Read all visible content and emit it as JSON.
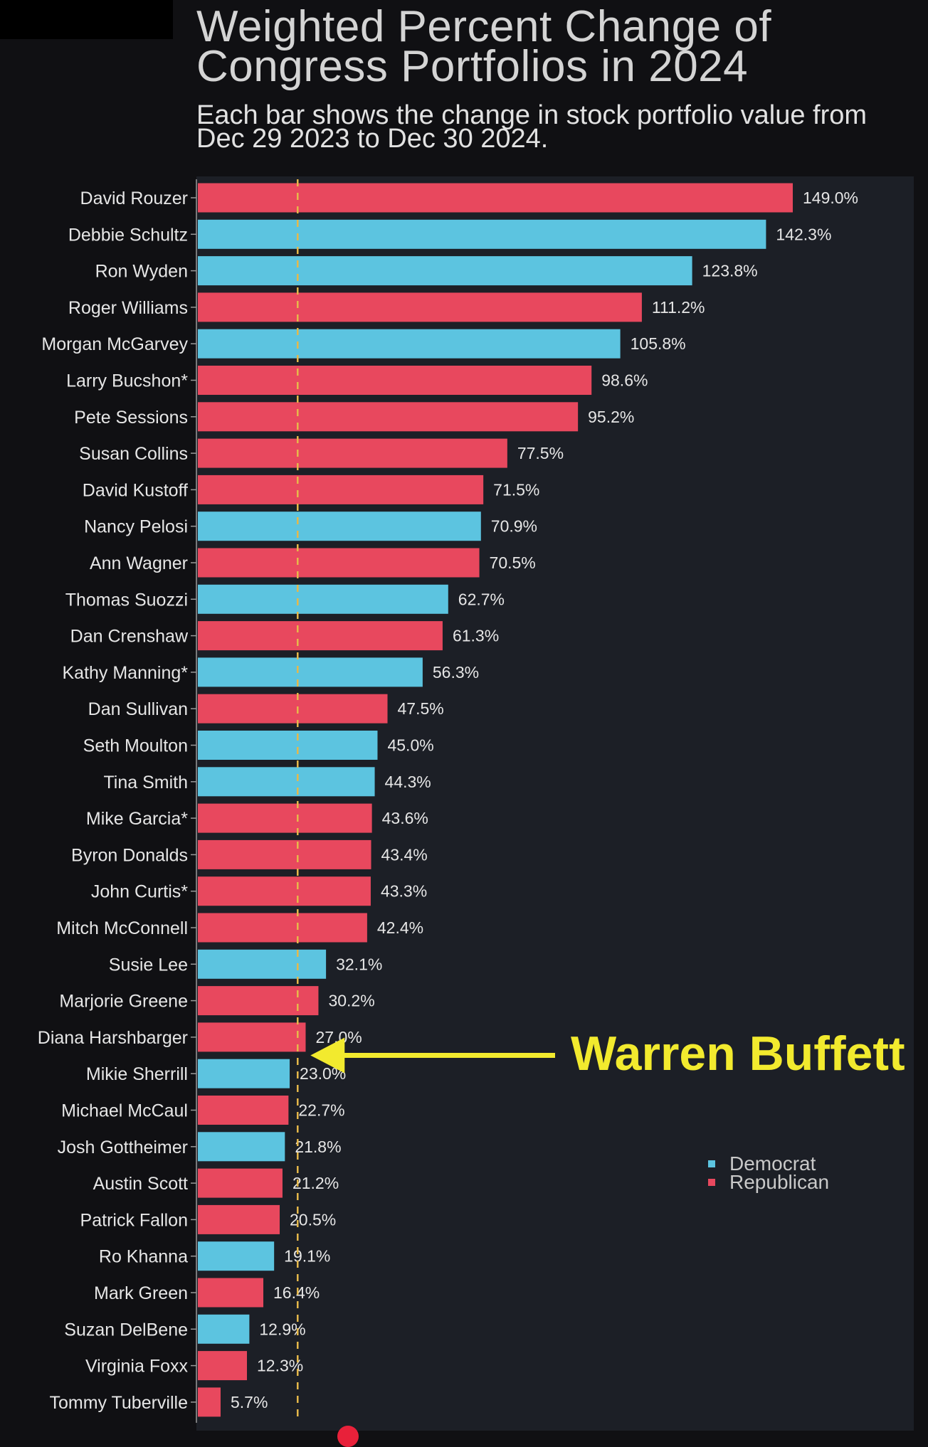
{
  "title": "Weighted Percent Change of Congress Portfolios in 2024",
  "subtitle": "Each bar shows the change in stock portfolio value from Dec 29 2023 to Dec 30 2024.",
  "annotation": "Warren Buffett",
  "colors": {
    "democrat": "#5cc4e0",
    "republican": "#e8485e",
    "reference_line": "#e6b84a",
    "annotation": "#f2ea2e",
    "background": "#101013",
    "plot_background": "#1c1f26"
  },
  "legend": [
    {
      "label": "Democrat",
      "color": "#5cc4e0"
    },
    {
      "label": "Republican",
      "color": "#e8485e"
    }
  ],
  "chart_data": {
    "type": "bar",
    "orientation": "horizontal",
    "title": "Weighted Percent Change of Congress Portfolios in 2024",
    "subtitle": "Each bar shows the change in stock portfolio value from Dec 29 2023 to Dec 30 2024.",
    "xlim": [
      0,
      160
    ],
    "reference_line": {
      "value": 25.0,
      "style": "dashed",
      "label": "Warren Buffett"
    },
    "legend_position": "right",
    "categories": [
      "David Rouzer",
      "Debbie Schultz",
      "Ron Wyden",
      "Roger Williams",
      "Morgan McGarvey",
      "Larry Bucshon*",
      "Pete Sessions",
      "Susan Collins",
      "David Kustoff",
      "Nancy Pelosi",
      "Ann Wagner",
      "Thomas Suozzi",
      "Dan Crenshaw",
      "Kathy Manning*",
      "Dan Sullivan",
      "Seth Moulton",
      "Tina Smith",
      "Mike Garcia*",
      "Byron Donalds",
      "John Curtis*",
      "Mitch McConnell",
      "Susie Lee",
      "Marjorie Greene",
      "Diana Harshbarger",
      "Mikie Sherrill",
      "Michael McCaul",
      "Josh Gottheimer",
      "Austin Scott",
      "Patrick Fallon",
      "Ro Khanna",
      "Mark Green",
      "Suzan DelBene",
      "Virginia Foxx",
      "Tommy Tuberville"
    ],
    "values": [
      149.0,
      142.3,
      123.8,
      111.2,
      105.8,
      98.6,
      95.2,
      77.5,
      71.5,
      70.9,
      70.5,
      62.7,
      61.3,
      56.3,
      47.5,
      45.0,
      44.3,
      43.6,
      43.4,
      43.3,
      42.4,
      32.1,
      30.2,
      27.0,
      23.0,
      22.7,
      21.8,
      21.2,
      20.5,
      19.1,
      16.4,
      12.9,
      12.3,
      5.7
    ],
    "labels": [
      "149.0%",
      "142.3%",
      "123.8%",
      "111.2%",
      "105.8%",
      "98.6%",
      "95.2%",
      "77.5%",
      "71.5%",
      "70.9%",
      "70.5%",
      "62.7%",
      "61.3%",
      "56.3%",
      "47.5%",
      "45.0%",
      "44.3%",
      "43.6%",
      "43.4%",
      "43.3%",
      "42.4%",
      "32.1%",
      "30.2%",
      "27.0%",
      "23.0%",
      "22.7%",
      "21.8%",
      "21.2%",
      "20.5%",
      "19.1%",
      "16.4%",
      "12.9%",
      "12.3%",
      "5.7%"
    ],
    "party": [
      "Republican",
      "Democrat",
      "Democrat",
      "Republican",
      "Democrat",
      "Republican",
      "Republican",
      "Republican",
      "Republican",
      "Democrat",
      "Republican",
      "Democrat",
      "Republican",
      "Democrat",
      "Republican",
      "Democrat",
      "Democrat",
      "Republican",
      "Republican",
      "Republican",
      "Republican",
      "Democrat",
      "Republican",
      "Republican",
      "Democrat",
      "Republican",
      "Democrat",
      "Republican",
      "Republican",
      "Democrat",
      "Republican",
      "Democrat",
      "Republican",
      "Republican"
    ]
  }
}
